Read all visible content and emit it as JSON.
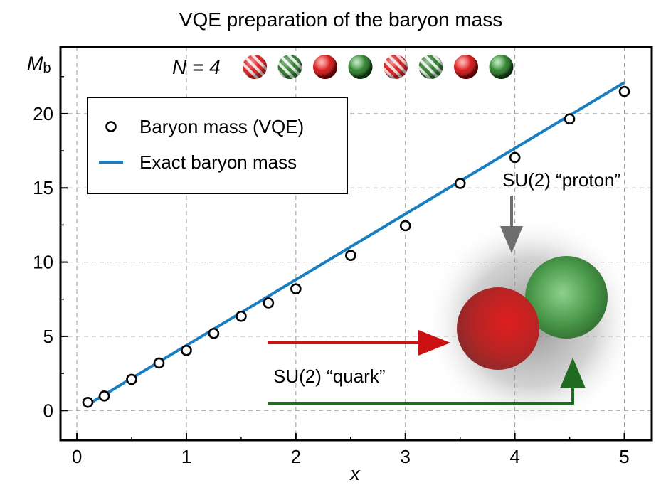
{
  "chart_data": {
    "type": "scatter",
    "title": "VQE preparation of the baryon mass",
    "xlabel": "x",
    "ylabel_main": "M",
    "ylabel_sub": "b",
    "xlim": [
      -0.15,
      5.25
    ],
    "ylim": [
      -2,
      24.5
    ],
    "xticks": [
      0,
      1,
      2,
      3,
      4,
      5
    ],
    "yticks": [
      0,
      5,
      10,
      15,
      20
    ],
    "grid": true,
    "legend_position": "upper-left",
    "series": [
      {
        "name": "Baryon mass (VQE)",
        "kind": "markers",
        "marker": "open-circle",
        "color": "#000000",
        "x": [
          0.1,
          0.25,
          0.5,
          0.75,
          1.0,
          1.25,
          1.5,
          1.75,
          2.0,
          2.5,
          3.0,
          3.5,
          4.0,
          4.5,
          5.0
        ],
        "y": [
          0.55,
          0.98,
          2.1,
          3.2,
          4.05,
          5.2,
          6.35,
          7.25,
          8.2,
          10.45,
          12.45,
          15.3,
          17.05,
          19.65,
          21.5
        ],
        "yerr": [
          0,
          0,
          0,
          0,
          0,
          0,
          0,
          0,
          0,
          0,
          0,
          0.35,
          0,
          0,
          0
        ]
      },
      {
        "name": "Exact baryon mass",
        "kind": "line",
        "color": "#1a7fc1",
        "x": [
          0.1,
          5.0
        ],
        "y": [
          0.4,
          22.1
        ]
      }
    ],
    "annotations": {
      "n_label": "N = 4",
      "spheres": [
        "red-striped",
        "green-striped",
        "red",
        "green",
        "red-striped",
        "green-striped",
        "red",
        "green"
      ],
      "proton_label": "SU(2) “proton”",
      "quark_label": "SU(2) “quark”"
    },
    "colors": {
      "line": "#1a7fc1",
      "red_arrow": "#cc1111",
      "green_arrow": "#1f6b1f",
      "gray_arrow": "#6e6e6e",
      "red_sphere": "#cc1a1a",
      "green_sphere": "#3d8c3d"
    }
  }
}
